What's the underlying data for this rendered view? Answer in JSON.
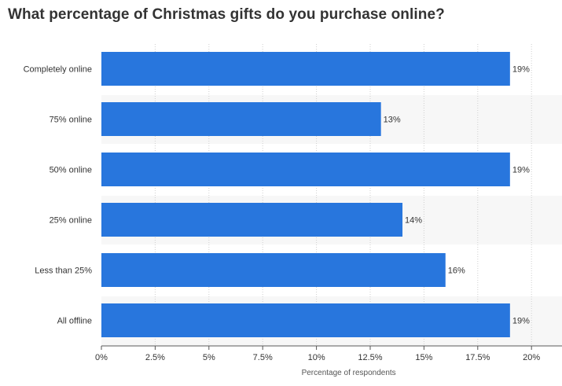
{
  "title": "What percentage of Christmas gifts do you purchase online?",
  "chart_data": {
    "type": "bar",
    "orientation": "horizontal",
    "title": "What percentage of Christmas gifts do you purchase online?",
    "xlabel": "Percentage of respondents",
    "ylabel": "",
    "categories": [
      "Completely online",
      "75% online",
      "50% online",
      "25% online",
      "Less than 25%",
      "All offline"
    ],
    "values": [
      19,
      13,
      19,
      14,
      16,
      19
    ],
    "value_labels": [
      "19%",
      "13%",
      "19%",
      "14%",
      "16%",
      "19%"
    ],
    "xlim": [
      0,
      21.5
    ],
    "x_ticks": [
      0,
      2.5,
      5,
      7.5,
      10,
      12.5,
      15,
      17.5,
      20
    ],
    "x_tick_labels": [
      "0%",
      "2.5%",
      "5%",
      "7.5%",
      "10%",
      "12.5%",
      "15%",
      "17.5%",
      "20%"
    ],
    "grid": true,
    "bar_color": "#2876dd",
    "band_color": "#f7f7f7"
  }
}
